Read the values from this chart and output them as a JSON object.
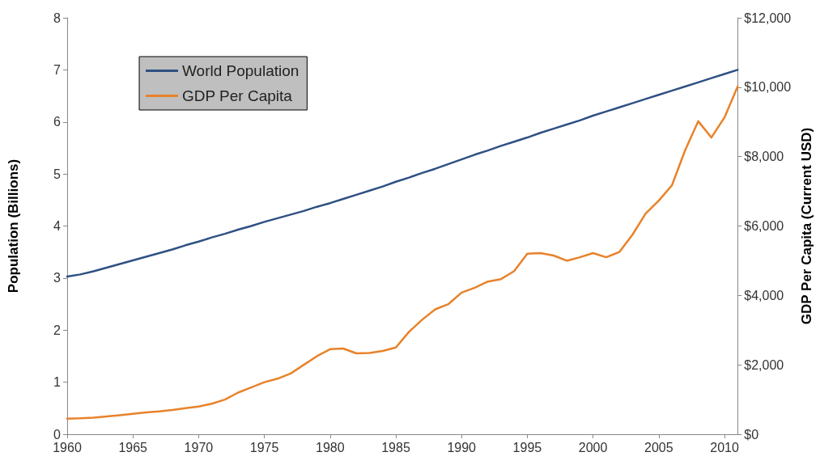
{
  "chart_data": {
    "type": "line",
    "x": [
      1960,
      1961,
      1962,
      1963,
      1964,
      1965,
      1966,
      1967,
      1968,
      1969,
      1970,
      1971,
      1972,
      1973,
      1974,
      1975,
      1976,
      1977,
      1978,
      1979,
      1980,
      1981,
      1982,
      1983,
      1984,
      1985,
      1986,
      1987,
      1988,
      1989,
      1990,
      1991,
      1992,
      1993,
      1994,
      1995,
      1996,
      1997,
      1998,
      1999,
      2000,
      2001,
      2002,
      2003,
      2004,
      2005,
      2006,
      2007,
      2008,
      2009,
      2010,
      2011
    ],
    "series": [
      {
        "name": "World Population",
        "color": "#2f5083",
        "values": [
          3.03,
          3.07,
          3.13,
          3.2,
          3.27,
          3.34,
          3.41,
          3.48,
          3.55,
          3.63,
          3.7,
          3.78,
          3.85,
          3.93,
          4.0,
          4.08,
          4.15,
          4.22,
          4.29,
          4.37,
          4.44,
          4.52,
          4.6,
          4.68,
          4.76,
          4.85,
          4.93,
          5.02,
          5.1,
          5.19,
          5.28,
          5.37,
          5.45,
          5.54,
          5.62,
          5.7,
          5.79,
          5.87,
          5.95,
          6.03,
          6.12,
          6.2,
          6.28,
          6.36,
          6.44,
          6.52,
          6.6,
          6.68,
          6.76,
          6.84,
          6.92,
          7.0
        ]
      },
      {
        "name": "GDP Per Capita",
        "color": "#e8822a",
        "axis": "y2",
        "values": [
          450,
          460,
          480,
          510,
          550,
          590,
          630,
          660,
          700,
          750,
          800,
          880,
          1000,
          1200,
          1350,
          1500,
          1600,
          1750,
          2000,
          2250,
          2450,
          2470,
          2330,
          2340,
          2400,
          2500,
          2950,
          3300,
          3600,
          3750,
          4080,
          4220,
          4400,
          4470,
          4700,
          5200,
          5220,
          5150,
          5000,
          5100,
          5220,
          5100,
          5250,
          5750,
          6360,
          6730,
          7170,
          8180,
          9020,
          8550,
          9130,
          10020
        ]
      }
    ],
    "ylabel": "Population (Billions)",
    "y2label": "GDP Per Capita (Current USD)",
    "xlim": [
      1960,
      2011
    ],
    "xticks": [
      1960,
      1965,
      1970,
      1975,
      1980,
      1985,
      1990,
      1995,
      2000,
      2005,
      2010
    ],
    "ylim": [
      0,
      8
    ],
    "yticks": [
      0,
      1,
      2,
      3,
      4,
      5,
      6,
      7,
      8
    ],
    "y2lim": [
      0,
      12000
    ],
    "y2ticks": [
      {
        "value": 0,
        "label": "$0"
      },
      {
        "value": 2000,
        "label": "$2,000"
      },
      {
        "value": 4000,
        "label": "$4,000"
      },
      {
        "value": 6000,
        "label": "$6,000"
      },
      {
        "value": 8000,
        "label": "$8,000"
      },
      {
        "value": 10000,
        "label": "$10,000"
      },
      {
        "value": 12000,
        "label": "$12,000"
      }
    ],
    "legend": "top left",
    "grid": false,
    "marker": "none",
    "line_style": "solid"
  }
}
